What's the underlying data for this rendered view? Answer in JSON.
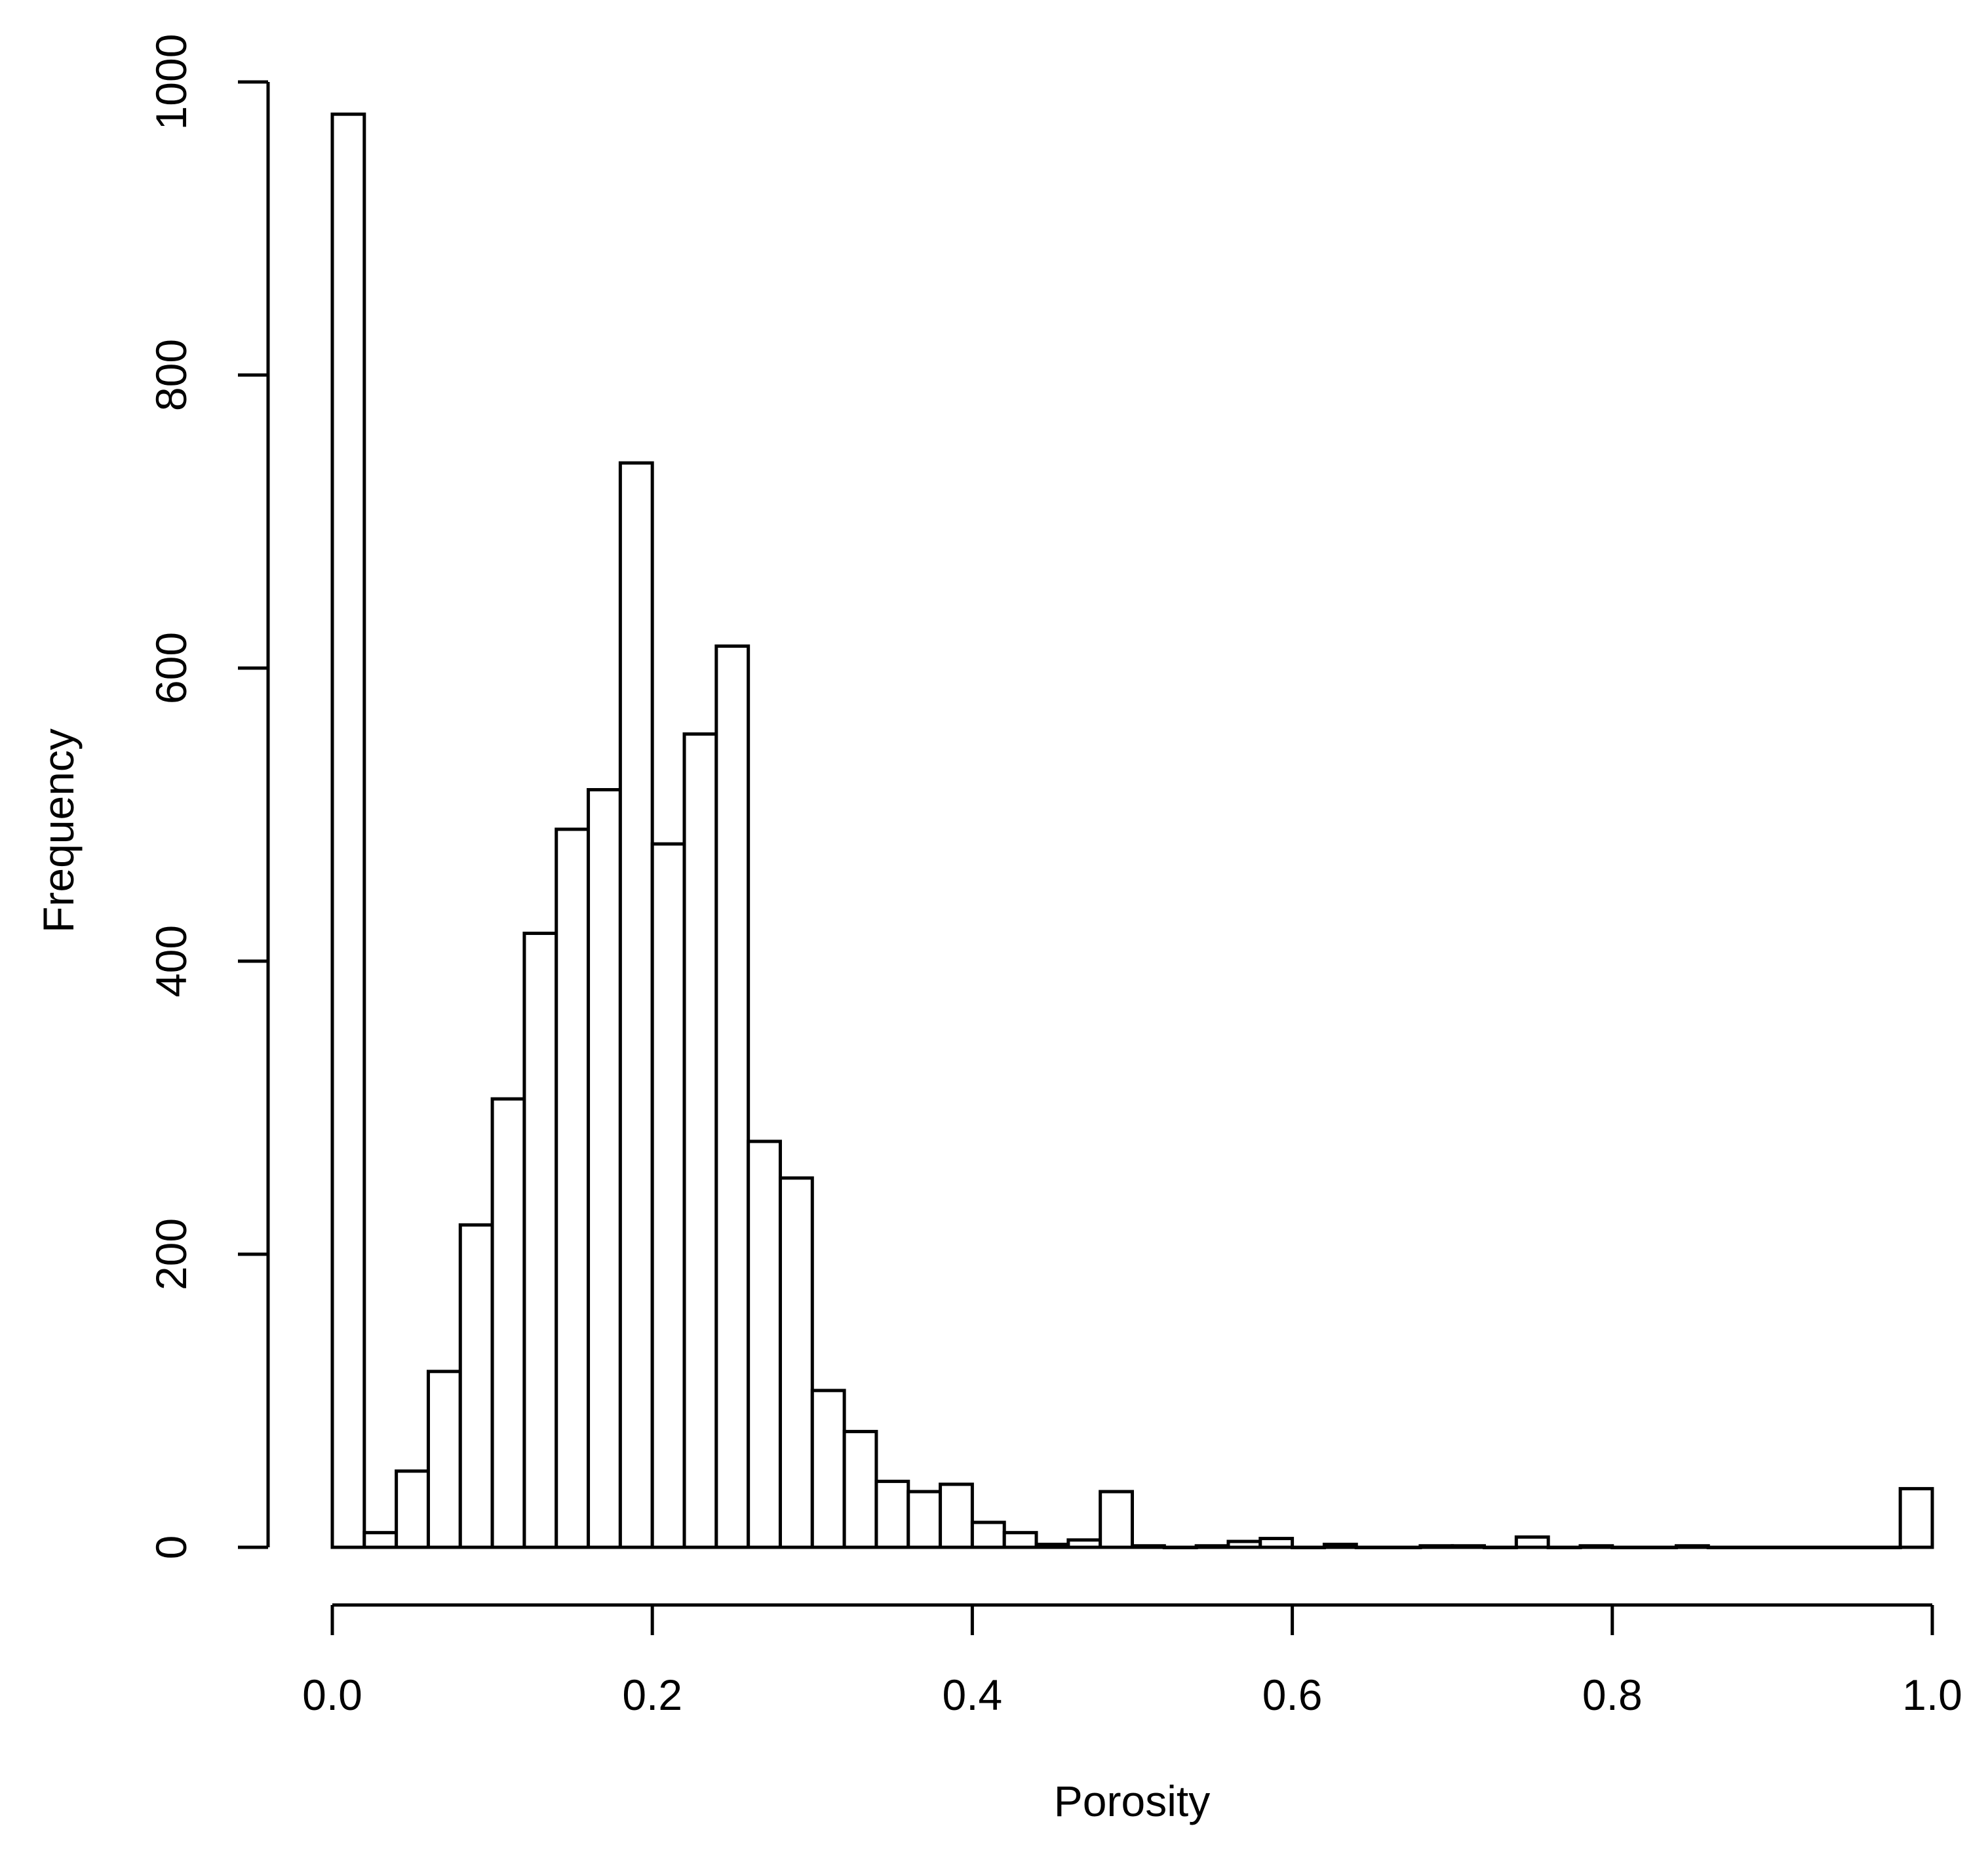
{
  "chart_data": {
    "type": "bar",
    "xlabel": "Porosity",
    "ylabel": "Frequency",
    "xlim": [
      0,
      1
    ],
    "ylim": [
      0,
      1000
    ],
    "xticks": [
      "0.0",
      "0.2",
      "0.4",
      "0.6",
      "0.8",
      "1.0"
    ],
    "yticks": [
      "0",
      "200",
      "400",
      "600",
      "800",
      "1000"
    ],
    "bin_width": 0.02,
    "bins_start": [
      0.0,
      0.02,
      0.04,
      0.06,
      0.08,
      0.1,
      0.12,
      0.14,
      0.16,
      0.18,
      0.2,
      0.22,
      0.24,
      0.26,
      0.28,
      0.3,
      0.32,
      0.34,
      0.36,
      0.38,
      0.4,
      0.42,
      0.44,
      0.46,
      0.48,
      0.5,
      0.52,
      0.54,
      0.56,
      0.58,
      0.6,
      0.62,
      0.64,
      0.66,
      0.68,
      0.7,
      0.72,
      0.74,
      0.76,
      0.78,
      0.8,
      0.82,
      0.84,
      0.86,
      0.88,
      0.9,
      0.92,
      0.94,
      0.96,
      0.98
    ],
    "values": [
      978,
      10,
      52,
      120,
      220,
      306,
      419,
      490,
      517,
      740,
      480,
      555,
      615,
      277,
      252,
      107,
      79,
      45,
      38,
      43,
      17,
      10,
      2,
      5,
      38,
      1,
      0,
      1,
      4,
      6,
      0,
      2,
      0,
      0,
      1,
      1,
      0,
      7,
      0,
      1,
      0,
      0,
      1,
      0,
      0,
      0,
      0,
      0,
      0,
      40
    ],
    "grid": false,
    "legend": "none"
  }
}
